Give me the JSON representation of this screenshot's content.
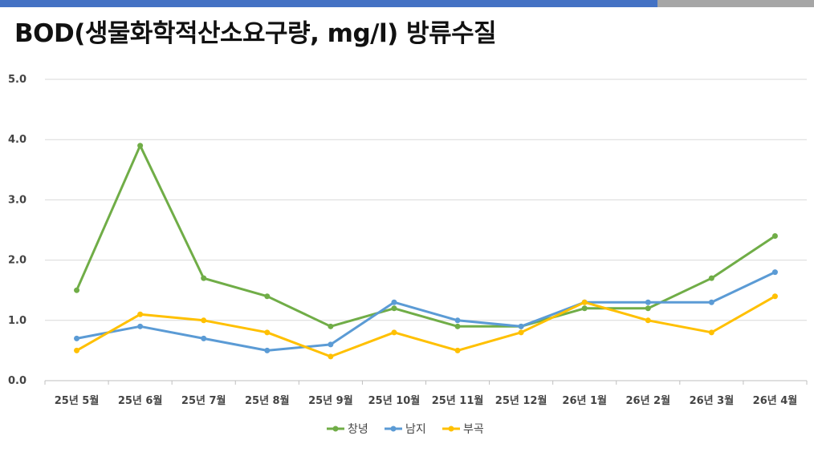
{
  "title": "BOD(생물화학적산소요구량, mg/l) 방류수질",
  "colors": {
    "topbar_primary": "#4472c4",
    "topbar_secondary": "#a6a6a6"
  },
  "chart_data": {
    "type": "line",
    "title": "BOD(생물화학적산소요구량, mg/l) 방류수질",
    "xlabel": "",
    "ylabel": "",
    "categories": [
      "25년 5월",
      "25년 6월",
      "25년 7월",
      "25년 8월",
      "25년 9월",
      "25년 10월",
      "25년 11월",
      "25년 12월",
      "26년 1월",
      "26년 2월",
      "26년 3월",
      "26년 4월"
    ],
    "yticks": [
      "0.0",
      "1.0",
      "2.0",
      "3.0",
      "4.0",
      "5.0"
    ],
    "ylim": [
      0,
      5
    ],
    "grid": true,
    "legend_position": "bottom",
    "series": [
      {
        "name": "창녕",
        "color": "#70ad47",
        "values": [
          1.5,
          3.9,
          1.7,
          1.4,
          0.9,
          1.2,
          0.9,
          0.9,
          1.2,
          1.2,
          1.7,
          2.4
        ]
      },
      {
        "name": "남지",
        "color": "#5b9bd5",
        "values": [
          0.7,
          0.9,
          0.7,
          0.5,
          0.6,
          1.3,
          1.0,
          0.9,
          1.3,
          1.3,
          1.3,
          1.8
        ]
      },
      {
        "name": "부곡",
        "color": "#ffc000",
        "values": [
          0.5,
          1.1,
          1.0,
          0.8,
          0.4,
          0.8,
          0.5,
          0.8,
          1.3,
          1.0,
          0.8,
          1.4
        ]
      }
    ]
  }
}
